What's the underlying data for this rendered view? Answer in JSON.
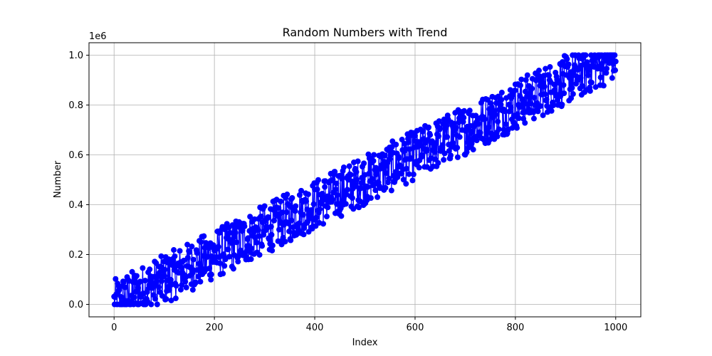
{
  "chart_data": {
    "type": "line",
    "title": "Random Numbers with Trend",
    "xlabel": "Index",
    "ylabel": "Number",
    "y_offset_label": "1e6",
    "xlim": [
      -50,
      1050
    ],
    "ylim": [
      -0.05,
      1.05
    ],
    "x_ticks": [
      0,
      200,
      400,
      600,
      800,
      1000
    ],
    "y_ticks": [
      0.0,
      0.2,
      0.4,
      0.6,
      0.8,
      1.0
    ],
    "x_tick_labels": [
      "0",
      "200",
      "400",
      "600",
      "800",
      "1000"
    ],
    "y_tick_labels": [
      "0.0",
      "0.2",
      "0.4",
      "0.6",
      "0.8",
      "1.0"
    ],
    "grid": true,
    "series_color": "#0000ff",
    "marker": "circle",
    "trend": {
      "x": [
        0,
        1000
      ],
      "y": [
        0.0,
        1.0
      ],
      "noise_band": [
        -0.1,
        0.1
      ]
    }
  }
}
